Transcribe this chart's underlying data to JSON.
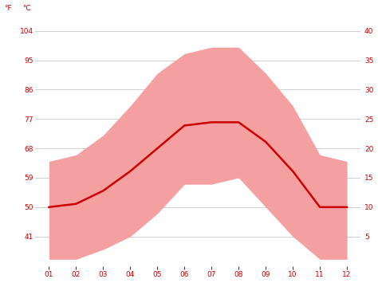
{
  "months": [
    1,
    2,
    3,
    4,
    5,
    6,
    7,
    8,
    9,
    10,
    11,
    12
  ],
  "month_labels": [
    "01",
    "02",
    "03",
    "04",
    "05",
    "06",
    "07",
    "08",
    "09",
    "10",
    "11",
    "12"
  ],
  "avg_temp_f": [
    50,
    51,
    55,
    61,
    68,
    75,
    76,
    76,
    70,
    61,
    50,
    50
  ],
  "max_temp_f": [
    64,
    66,
    72,
    81,
    91,
    97,
    99,
    99,
    91,
    81,
    66,
    64
  ],
  "min_temp_f": [
    34,
    34,
    37,
    41,
    48,
    57,
    57,
    59,
    50,
    41,
    34,
    34
  ],
  "y_ticks_f": [
    41,
    50,
    59,
    68,
    77,
    86,
    95,
    104
  ],
  "y_ticks_c": [
    5,
    10,
    15,
    20,
    25,
    30,
    35,
    40
  ],
  "ylim_f": [
    32,
    107
  ],
  "xlim": [
    0.5,
    12.5
  ],
  "line_color": "#cc0000",
  "band_color": "#f5a0a0",
  "background_color": "#ffffff",
  "grid_color": "#d0d0d0",
  "tick_color": "#cc0000",
  "line_width": 1.8,
  "figsize": [
    4.74,
    3.55
  ],
  "dpi": 100,
  "label_f": "°F",
  "label_c": "°C",
  "top_left_f": "104",
  "top_right_c": "40"
}
